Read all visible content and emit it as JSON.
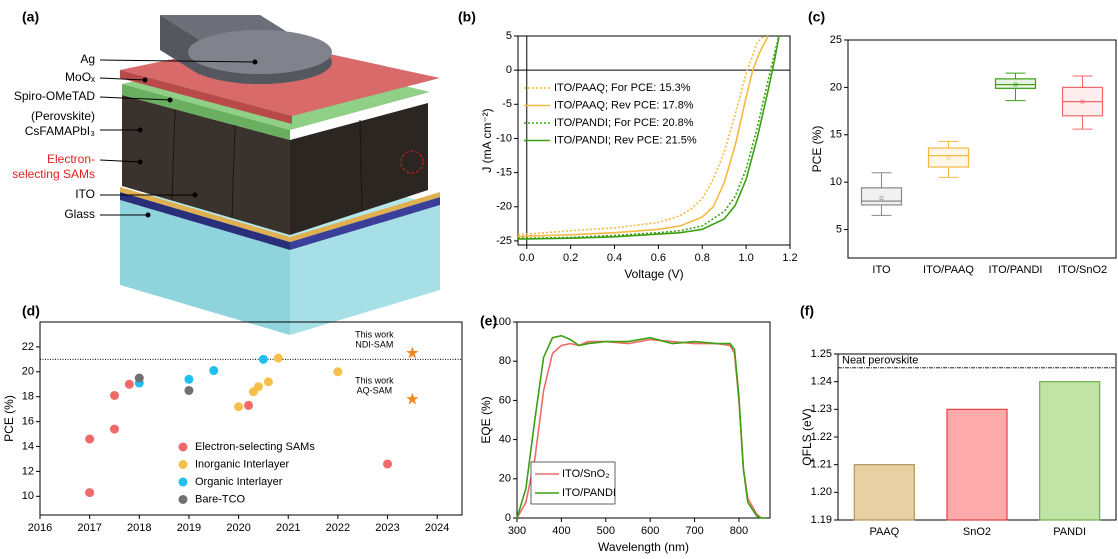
{
  "schematic": {
    "panel_label": "(a)",
    "labels": {
      "ag": "Ag",
      "moox": "MoOₓ",
      "spiro": "Spiro-OMeTAD",
      "perovskite": [
        "(Perovskite)",
        "CsFAMAPbI₃"
      ],
      "sams": [
        "Electron-",
        "selecting SAMs"
      ],
      "ito": "ITO",
      "glass": "Glass"
    }
  },
  "chart_data": [
    {
      "type": "line",
      "panel_label": "(b)",
      "x_label": "Voltage (V)",
      "y_label": "J (mA cm⁻²)",
      "xlim": [
        -0.04,
        1.2
      ],
      "ylim": [
        -25.6,
        5
      ],
      "xticks": [
        {
          "value": 0,
          "label": "0.0"
        },
        0.2,
        0.4,
        0.6,
        0.8,
        {
          "value": 1,
          "label": "1.0"
        },
        1.2
      ],
      "yticks": [
        -25,
        -20,
        -15,
        -10,
        -5,
        0,
        5
      ],
      "zero_lines": true,
      "legend": "upper-left",
      "series": [
        {
          "name": "ITO/PAAQ; For PCE: 15.3%",
          "color": "#f5b942",
          "style": "dotted",
          "x": [
            -0.04,
            0,
            0.2,
            0.4,
            0.6,
            0.7,
            0.75,
            0.8,
            0.85,
            0.9,
            0.95,
            1.0,
            1.05,
            1.08
          ],
          "values": [
            -24.1,
            -24.0,
            -23.5,
            -23.1,
            -22.3,
            -21.3,
            -20.3,
            -18.8,
            -16,
            -12,
            -6.5,
            -0.5,
            4,
            5
          ]
        },
        {
          "name": "ITO/PAAQ; Rev PCE: 17.8%",
          "color": "#f5b942",
          "style": "solid",
          "x": [
            -0.04,
            0,
            0.2,
            0.4,
            0.6,
            0.7,
            0.8,
            0.85,
            0.9,
            0.95,
            1.0,
            1.03,
            1.06,
            1.1
          ],
          "values": [
            -24.4,
            -24.3,
            -24.1,
            -23.8,
            -23.3,
            -22.8,
            -21.5,
            -20,
            -16.5,
            -11,
            -4,
            0,
            2.5,
            5
          ]
        },
        {
          "name": "ITO/PANDI; For PCE: 20.8%",
          "color": "#3aa012",
          "style": "dotted",
          "x": [
            -0.04,
            0,
            0.2,
            0.4,
            0.6,
            0.7,
            0.8,
            0.9,
            0.95,
            1.0,
            1.05,
            1.1,
            1.13,
            1.15
          ],
          "values": [
            -24.6,
            -24.6,
            -24.5,
            -24.2,
            -23.8,
            -23.5,
            -22.8,
            -20.7,
            -18.5,
            -14.5,
            -8.5,
            -1.5,
            2.5,
            5
          ]
        },
        {
          "name": "ITO/PANDI; Rev PCE: 21.5%",
          "color": "#3aa012",
          "style": "solid",
          "x": [
            -0.04,
            0,
            0.2,
            0.4,
            0.6,
            0.7,
            0.8,
            0.9,
            0.95,
            1.0,
            1.05,
            1.1,
            1.13,
            1.15
          ],
          "values": [
            -24.7,
            -24.7,
            -24.6,
            -24.4,
            -24.0,
            -23.8,
            -23.3,
            -21.8,
            -19.8,
            -16,
            -10,
            -3,
            1.5,
            5
          ]
        }
      ]
    },
    {
      "type": "box",
      "panel_label": "(c)",
      "y_label": "PCE (%)",
      "categories": [
        "ITO",
        "ITO/PAAQ",
        "ITO/PANDI",
        "ITO/SnO2"
      ],
      "ylim": [
        2,
        25
      ],
      "yticks": [
        5,
        10,
        15,
        20,
        25
      ],
      "boxes": [
        {
          "min": 6.5,
          "q1": 7.6,
          "median": 8.0,
          "q3": 9.4,
          "max": 11,
          "mean": 8.3,
          "color": "#888888"
        },
        {
          "min": 10.5,
          "q1": 11.6,
          "median": 12.8,
          "q3": 13.6,
          "max": 14.3,
          "mean": 12.6,
          "color": "#f5b942"
        },
        {
          "min": 18.6,
          "q1": 19.9,
          "median": 20.3,
          "q3": 20.9,
          "max": 21.5,
          "mean": 20.3,
          "color": "#3aa012"
        },
        {
          "min": 15.6,
          "q1": 17.0,
          "median": 18.5,
          "q3": 20.0,
          "max": 21.2,
          "mean": 18.5,
          "color": "#f06a6a"
        }
      ]
    },
    {
      "type": "scatter",
      "panel_label": "(d)",
      "y_label": "PCE (%)",
      "xlim": [
        2016,
        2024.5
      ],
      "ylim": [
        8.5,
        24
      ],
      "xticks": [
        2016,
        2017,
        2018,
        2019,
        2020,
        2021,
        2022,
        2023,
        2024
      ],
      "yticks": [
        10,
        12,
        14,
        16,
        18,
        20,
        22
      ],
      "reference_line": 21,
      "legend": "lower-center",
      "series": [
        {
          "name": "Electron-selecting SAMs",
          "color": "#f06a6a",
          "x": [
            2017,
            2017,
            2017.5,
            2017.5,
            2017.8,
            2020.2,
            2023
          ],
          "values": [
            10.3,
            14.6,
            15.4,
            18.1,
            19.0,
            17.3,
            12.6
          ]
        },
        {
          "name": "Inorganic Interlayer",
          "color": "#f7c04a",
          "x": [
            2020,
            2020.3,
            2020.4,
            2020.6,
            2020.8,
            2022
          ],
          "values": [
            17.2,
            18.4,
            18.8,
            19.2,
            21.1,
            20.0
          ]
        },
        {
          "name": "Organic Interlayer",
          "color": "#1ec0f0",
          "x": [
            2018,
            2019,
            2019.5,
            2020.5
          ],
          "values": [
            19.1,
            19.4,
            20.1,
            21.0
          ]
        },
        {
          "name": "Bare-TCO",
          "color": "#707070",
          "x": [
            2018,
            2019
          ],
          "values": [
            19.5,
            18.5
          ]
        }
      ],
      "highlights": [
        {
          "label_lines": [
            "This work",
            "NDI-SAM"
          ],
          "x": 2023.5,
          "value": 21.5,
          "color": "#f08a20"
        },
        {
          "label_lines": [
            "This work",
            "AQ-SAM"
          ],
          "x": 2023.5,
          "value": 17.8,
          "color": "#f08a20"
        }
      ]
    },
    {
      "type": "line",
      "panel_label": "(e)",
      "x_label": "Wavelength (nm)",
      "y_label": "EQE (%)",
      "xlim": [
        300,
        870
      ],
      "ylim": [
        0,
        100
      ],
      "xticks": [
        300,
        400,
        500,
        600,
        700,
        800
      ],
      "yticks": [
        0,
        20,
        40,
        60,
        80,
        100
      ],
      "legend": "lower-left",
      "x": [
        300,
        320,
        340,
        360,
        380,
        400,
        420,
        440,
        460,
        500,
        550,
        600,
        650,
        700,
        750,
        780,
        790,
        800,
        810,
        820,
        840,
        850,
        860
      ],
      "series": [
        {
          "name": "ITO/SnO₂",
          "color": "#f06a6a",
          "style": "solid",
          "values": [
            0,
            8,
            30,
            65,
            84,
            88,
            89,
            88,
            90,
            90,
            89,
            91,
            90,
            89,
            89,
            88,
            84,
            60,
            25,
            10,
            2,
            0,
            0
          ]
        },
        {
          "name": "ITO/PANDI",
          "color": "#3aa012",
          "style": "solid",
          "values": [
            0,
            15,
            50,
            82,
            92,
            93,
            91,
            88,
            89,
            90,
            90,
            92,
            89,
            90,
            89,
            89,
            86,
            62,
            25,
            8,
            1,
            0,
            0
          ]
        }
      ]
    },
    {
      "type": "bar",
      "panel_label": "(f)",
      "y_label": "QFLS (eV)",
      "categories": [
        "PAAQ",
        "SnO2",
        "PANDI"
      ],
      "values": [
        1.21,
        1.23,
        1.24
      ],
      "colors": [
        "#e8cfa4",
        "#ffaaaa",
        "#c2e3a6"
      ],
      "edge_colors": [
        "#b8925a",
        "#e04040",
        "#6fb04a"
      ],
      "ylim": [
        1.19,
        1.25
      ],
      "yticks": [
        1.19,
        {
          "value": 1.2,
          "label": "1.20"
        },
        1.21,
        1.22,
        1.23,
        1.24,
        1.25
      ],
      "reference_line": 1.245,
      "reference_label": "Neat perovskite"
    }
  ]
}
